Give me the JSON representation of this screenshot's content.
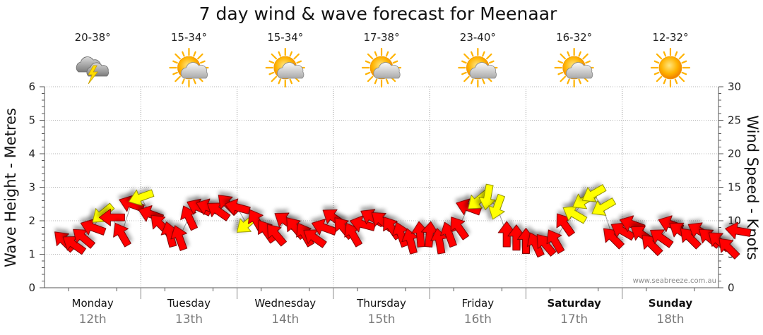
{
  "chart_data": {
    "type": "line",
    "title": "7 day wind & wave forecast for Meenaar",
    "ylabel": "Wave Height - Metres",
    "y2label": "Wind Speed - Knots",
    "ylim": [
      0,
      6
    ],
    "y2lim": [
      0,
      30
    ],
    "yticks": [
      0,
      1,
      2,
      3,
      4,
      5,
      6
    ],
    "y2ticks": [
      0,
      5,
      10,
      15,
      20,
      25,
      30
    ],
    "grid": true,
    "credit": "www.seabreeze.com.au",
    "days": [
      {
        "name": "Monday",
        "date": "12th",
        "temp": "20-38°",
        "icon": "storm-cloud-icon",
        "bold": false
      },
      {
        "name": "Tuesday",
        "date": "13th",
        "temp": "15-34°",
        "icon": "partly-cloudy-icon",
        "bold": false
      },
      {
        "name": "Wednesday",
        "date": "14th",
        "temp": "15-34°",
        "icon": "partly-cloudy-icon",
        "bold": false
      },
      {
        "name": "Thursday",
        "date": "15th",
        "temp": "17-38°",
        "icon": "partly-cloudy-icon",
        "bold": false
      },
      {
        "name": "Friday",
        "date": "16th",
        "temp": "23-40°",
        "icon": "partly-cloudy-icon",
        "bold": false
      },
      {
        "name": "Saturday",
        "date": "17th",
        "temp": "16-32°",
        "icon": "partly-cloudy-icon",
        "bold": true
      },
      {
        "name": "Sunday",
        "date": "18th",
        "temp": "12-32°",
        "icon": "sun-icon",
        "bold": true
      }
    ],
    "series": [
      {
        "name": "Wind Speed - Knots",
        "color_strong": "#ff0000",
        "color_light": "#ffff00",
        "points": [
          [
            -0.1,
            7,
            225,
            "r"
          ],
          [
            0.1,
            6.5,
            215,
            "r"
          ],
          [
            0.3,
            7.5,
            220,
            "r"
          ],
          [
            0.5,
            9,
            200,
            "r"
          ],
          [
            0.7,
            11,
            140,
            "y"
          ],
          [
            0.9,
            10.5,
            180,
            "r"
          ],
          [
            1.1,
            8,
            240,
            "r"
          ],
          [
            1.3,
            12.5,
            200,
            "r"
          ],
          [
            1.5,
            13.5,
            160,
            "y"
          ],
          [
            1.7,
            11,
            200,
            "r"
          ],
          [
            1.9,
            9.5,
            225,
            "r"
          ],
          [
            2.1,
            8,
            255,
            "r"
          ],
          [
            2.3,
            7.5,
            250,
            "r"
          ],
          [
            2.5,
            10.5,
            245,
            "r"
          ],
          [
            2.7,
            12,
            205,
            "r"
          ],
          [
            2.9,
            12,
            200,
            "r"
          ],
          [
            3.1,
            11.5,
            215,
            "r"
          ],
          [
            3.3,
            12.5,
            225,
            "r"
          ],
          [
            3.5,
            12,
            195,
            "r"
          ],
          [
            3.7,
            9.5,
            140,
            "y"
          ],
          [
            3.9,
            10,
            240,
            "r"
          ],
          [
            4.1,
            8.5,
            235,
            "r"
          ],
          [
            4.3,
            8,
            230,
            "r"
          ],
          [
            4.5,
            10,
            215,
            "r"
          ],
          [
            4.7,
            9,
            230,
            "r"
          ],
          [
            4.9,
            8,
            240,
            "r"
          ],
          [
            5.1,
            7.5,
            215,
            "r"
          ],
          [
            5.3,
            9,
            200,
            "r"
          ],
          [
            5.5,
            10.5,
            215,
            "r"
          ],
          [
            5.7,
            9,
            230,
            "r"
          ],
          [
            5.9,
            8,
            240,
            "r"
          ],
          [
            6.1,
            9.5,
            195,
            "r"
          ],
          [
            6.3,
            10.5,
            210,
            "r"
          ],
          [
            6.5,
            10,
            220,
            "r"
          ],
          [
            6.7,
            9,
            235,
            "r"
          ],
          [
            6.9,
            8,
            250,
            "r"
          ],
          [
            7.1,
            7,
            255,
            "r"
          ],
          [
            7.3,
            8,
            265,
            "r"
          ],
          [
            7.5,
            8,
            275,
            "r"
          ],
          [
            7.7,
            7,
            260,
            "r"
          ],
          [
            7.9,
            8,
            250,
            "r"
          ],
          [
            8.1,
            9,
            235,
            "r"
          ],
          [
            8.3,
            12,
            200,
            "r"
          ],
          [
            8.5,
            13,
            140,
            "y"
          ],
          [
            8.7,
            13.5,
            100,
            "y"
          ],
          [
            8.9,
            12,
            110,
            "y"
          ],
          [
            9.1,
            8,
            270,
            "r"
          ],
          [
            9.3,
            7.5,
            270,
            "r"
          ],
          [
            9.5,
            7,
            270,
            "r"
          ],
          [
            9.7,
            6.5,
            245,
            "r"
          ],
          [
            9.9,
            6.5,
            230,
            "r"
          ],
          [
            10.1,
            7,
            240,
            "r"
          ],
          [
            10.3,
            9.5,
            235,
            "r"
          ],
          [
            10.5,
            11,
            210,
            "y"
          ],
          [
            10.7,
            13,
            150,
            "y"
          ],
          [
            10.9,
            14,
            150,
            "y"
          ],
          [
            11.1,
            12,
            150,
            "y"
          ],
          [
            11.3,
            7.5,
            225,
            "r"
          ],
          [
            11.5,
            8.5,
            210,
            "r"
          ],
          [
            11.7,
            9.5,
            200,
            "r"
          ],
          [
            11.9,
            8,
            215,
            "r"
          ],
          [
            12.1,
            6.5,
            225,
            "r"
          ],
          [
            12.3,
            7.5,
            215,
            "r"
          ],
          [
            12.5,
            9.5,
            200,
            "r"
          ],
          [
            12.7,
            8.5,
            215,
            "r"
          ],
          [
            12.9,
            7.5,
            225,
            "r"
          ],
          [
            13.1,
            8.5,
            210,
            "r"
          ],
          [
            13.3,
            7.5,
            220,
            "r"
          ],
          [
            13.5,
            7,
            220,
            "r"
          ],
          [
            13.7,
            6,
            225,
            "r"
          ],
          [
            13.9,
            8.5,
            190,
            "r"
          ]
        ]
      }
    ]
  }
}
